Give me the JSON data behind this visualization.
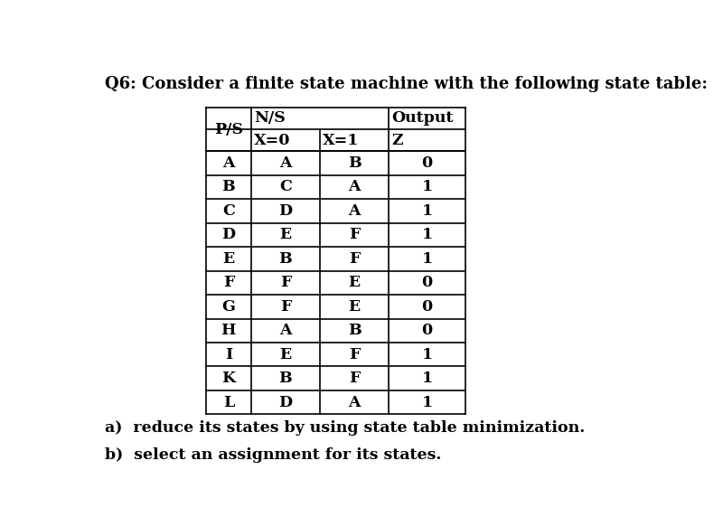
{
  "title": "Q6: Consider a finite state machine with the following state table:",
  "rows": [
    [
      "A",
      "A",
      "B",
      "0"
    ],
    [
      "B",
      "C",
      "A",
      "1"
    ],
    [
      "C",
      "D",
      "A",
      "1"
    ],
    [
      "D",
      "E",
      "F",
      "1"
    ],
    [
      "E",
      "B",
      "F",
      "1"
    ],
    [
      "F",
      "F",
      "E",
      "0"
    ],
    [
      "G",
      "F",
      "E",
      "0"
    ],
    [
      "H",
      "A",
      "B",
      "0"
    ],
    [
      "I",
      "E",
      "F",
      "1"
    ],
    [
      "K",
      "B",
      "F",
      "1"
    ],
    [
      "L",
      "D",
      "A",
      "1"
    ]
  ],
  "footer": [
    "a)  reduce its states by using state table minimization.",
    "b)  select an assignment for its states."
  ],
  "bg_color": "#ffffff",
  "text_color": "#000000",
  "font_size_title": 13.0,
  "font_size_table": 12.5,
  "font_size_footer": 12.5
}
